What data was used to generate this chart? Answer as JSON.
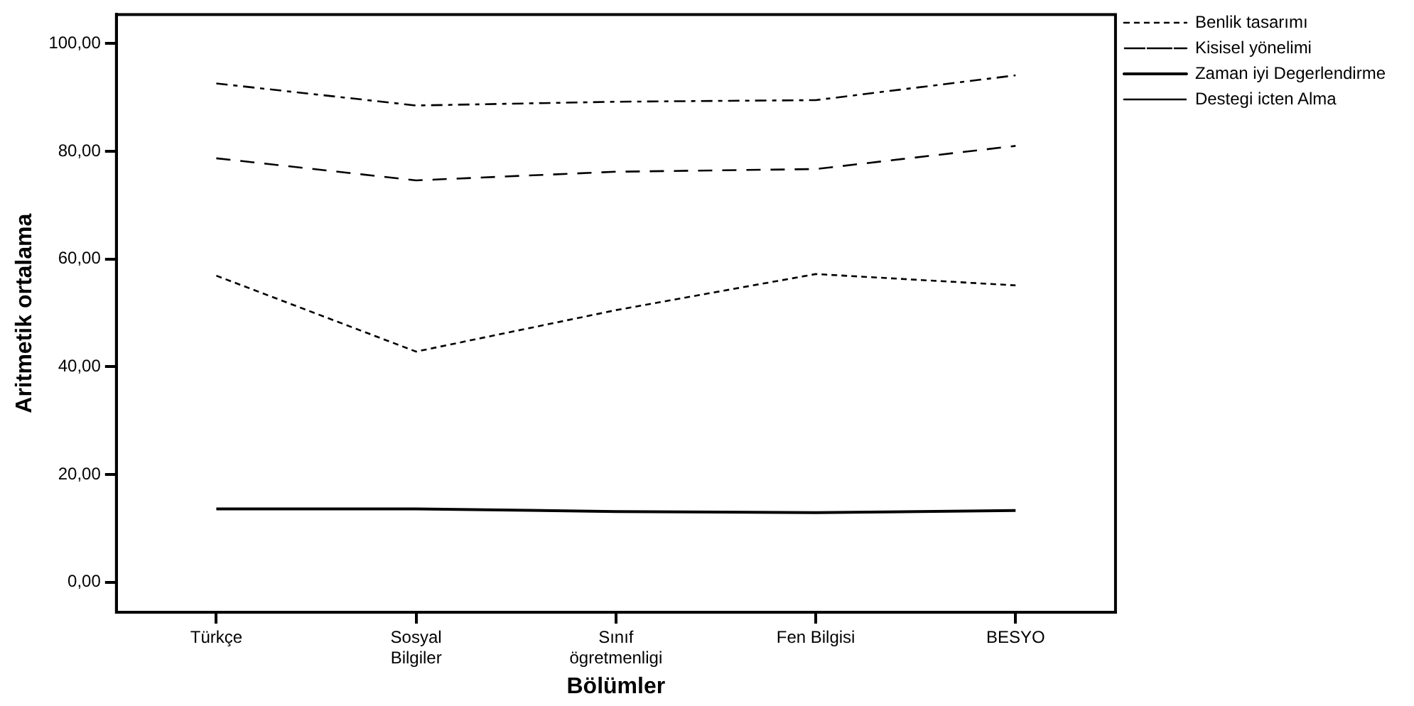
{
  "chart_data": {
    "type": "line",
    "xlabel": "Bölümler",
    "ylabel": "Aritmetik ortalama",
    "categories": [
      "Türkçe",
      [
        "Sosyal",
        "Bilgiler"
      ],
      [
        "Sınıf",
        "ögretmenligi"
      ],
      "Fen Bilgisi",
      "BESYO"
    ],
    "ylim": [
      -5.6,
      105.4
    ],
    "yticks": [
      {
        "value": 0,
        "label": "0,00"
      },
      {
        "value": 20,
        "label": "20,00"
      },
      {
        "value": 40,
        "label": "40,00"
      },
      {
        "value": 60,
        "label": "60,00"
      },
      {
        "value": 80,
        "label": "80,00"
      },
      {
        "value": 100,
        "label": "100,00"
      }
    ],
    "grid": false,
    "legend": "top right",
    "marker": "none",
    "series": [
      {
        "name": "Benlik tasarımı",
        "color": "#000000",
        "line_style": "dotted",
        "values": [
          56.9,
          42.8,
          50.5,
          57.2,
          55.1
        ]
      },
      {
        "name": "Kisisel yönelimi",
        "color": "#000000",
        "line_style": "dashdot",
        "values": [
          92.6,
          88.5,
          89.2,
          89.5,
          94.1
        ]
      },
      {
        "name": "Zaman iyi Degerlendirme",
        "color": "#000000",
        "line_style": "solid",
        "values": [
          13.6,
          13.6,
          13.1,
          12.9,
          13.3
        ]
      },
      {
        "name": "Destegi icten Alma",
        "color": "#000000",
        "line_style": "dashed",
        "values": [
          78.7,
          74.6,
          76.2,
          76.7,
          81.0
        ]
      }
    ]
  }
}
